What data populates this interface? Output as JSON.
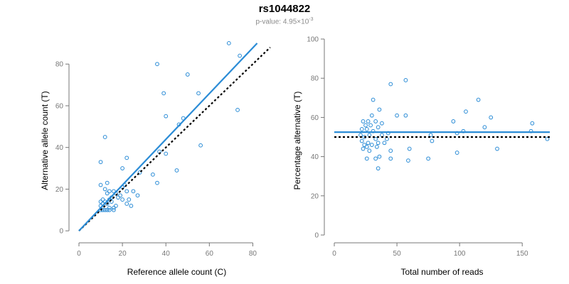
{
  "title": "rs1044822",
  "subtitle": {
    "prefix": "p-value: 4.95×10",
    "exponent": "-3"
  },
  "colors": {
    "points": "#2b8cd6",
    "fit_line": "#2b8cd6",
    "reference_line": "#000000",
    "axis": "#777777",
    "subtitle": "#8a8a8a"
  },
  "chart_data": [
    {
      "type": "scatter",
      "title": "",
      "xlabel": "Reference allele count (C)",
      "ylabel": "Alternative allele count (T)",
      "xlim": [
        0,
        90
      ],
      "ylim": [
        -2,
        92
      ],
      "x_ticks": [
        0,
        20,
        40,
        60,
        80
      ],
      "y_ticks": [
        0,
        20,
        40,
        60,
        80
      ],
      "grid": false,
      "fit_line": {
        "x": [
          0,
          82
        ],
        "y": [
          0,
          90
        ],
        "color": "#2b8cd6",
        "style": "solid"
      },
      "reference_line": {
        "x": [
          0,
          88
        ],
        "y": [
          0,
          88
        ],
        "color": "#000000",
        "style": "dotted"
      },
      "points": [
        {
          "x": 10,
          "y": 33
        },
        {
          "x": 12,
          "y": 45
        },
        {
          "x": 36,
          "y": 80
        },
        {
          "x": 39,
          "y": 66
        },
        {
          "x": 50,
          "y": 75
        },
        {
          "x": 69,
          "y": 90
        },
        {
          "x": 74,
          "y": 84
        },
        {
          "x": 73,
          "y": 58
        },
        {
          "x": 55,
          "y": 66
        },
        {
          "x": 40,
          "y": 55
        },
        {
          "x": 48,
          "y": 54
        },
        {
          "x": 46,
          "y": 51
        },
        {
          "x": 56,
          "y": 41
        },
        {
          "x": 40,
          "y": 37
        },
        {
          "x": 37,
          "y": 38
        },
        {
          "x": 36,
          "y": 23
        },
        {
          "x": 34,
          "y": 27
        },
        {
          "x": 45,
          "y": 29
        },
        {
          "x": 22,
          "y": 35
        },
        {
          "x": 20,
          "y": 30
        },
        {
          "x": 28,
          "y": 28
        },
        {
          "x": 10,
          "y": 22
        },
        {
          "x": 13,
          "y": 23
        },
        {
          "x": 21,
          "y": 22
        },
        {
          "x": 20,
          "y": 21
        },
        {
          "x": 12,
          "y": 20
        },
        {
          "x": 14,
          "y": 19
        },
        {
          "x": 16,
          "y": 19
        },
        {
          "x": 13,
          "y": 18
        },
        {
          "x": 17,
          "y": 18
        },
        {
          "x": 22,
          "y": 19
        },
        {
          "x": 25,
          "y": 19
        },
        {
          "x": 19,
          "y": 17
        },
        {
          "x": 27,
          "y": 17
        },
        {
          "x": 15,
          "y": 16
        },
        {
          "x": 18,
          "y": 16
        },
        {
          "x": 11,
          "y": 15
        },
        {
          "x": 14,
          "y": 15
        },
        {
          "x": 20,
          "y": 15
        },
        {
          "x": 23,
          "y": 15
        },
        {
          "x": 10,
          "y": 14
        },
        {
          "x": 12,
          "y": 14
        },
        {
          "x": 15,
          "y": 14
        },
        {
          "x": 22,
          "y": 13
        },
        {
          "x": 11,
          "y": 13
        },
        {
          "x": 13,
          "y": 13
        },
        {
          "x": 17,
          "y": 12
        },
        {
          "x": 24,
          "y": 12
        },
        {
          "x": 10,
          "y": 12
        },
        {
          "x": 14,
          "y": 11
        },
        {
          "x": 16,
          "y": 11
        },
        {
          "x": 11,
          "y": 10
        },
        {
          "x": 13,
          "y": 10
        },
        {
          "x": 16,
          "y": 10
        },
        {
          "x": 10,
          "y": 10
        },
        {
          "x": 12,
          "y": 10
        },
        {
          "x": 14,
          "y": 10
        }
      ]
    },
    {
      "type": "scatter",
      "title": "",
      "xlabel": "Total number of reads",
      "ylabel": "Percentage alternative (T)",
      "xlim": [
        0,
        172
      ],
      "ylim": [
        0,
        100
      ],
      "x_ticks": [
        0,
        50,
        100,
        150
      ],
      "y_ticks": [
        0,
        20,
        40,
        60,
        80,
        100
      ],
      "grid": false,
      "fit_line": {
        "y": 52.5,
        "color": "#2b8cd6",
        "style": "solid"
      },
      "reference_line": {
        "y": 50,
        "color": "#000000",
        "style": "dotted"
      },
      "points": [
        {
          "x": 45,
          "y": 77
        },
        {
          "x": 57,
          "y": 79
        },
        {
          "x": 31,
          "y": 69
        },
        {
          "x": 115,
          "y": 69
        },
        {
          "x": 36,
          "y": 64
        },
        {
          "x": 50,
          "y": 61
        },
        {
          "x": 57,
          "y": 61
        },
        {
          "x": 30,
          "y": 61
        },
        {
          "x": 105,
          "y": 63
        },
        {
          "x": 125,
          "y": 60
        },
        {
          "x": 23,
          "y": 58
        },
        {
          "x": 27,
          "y": 58
        },
        {
          "x": 33,
          "y": 58
        },
        {
          "x": 38,
          "y": 57
        },
        {
          "x": 25,
          "y": 56
        },
        {
          "x": 29,
          "y": 56
        },
        {
          "x": 35,
          "y": 55
        },
        {
          "x": 22,
          "y": 54
        },
        {
          "x": 26,
          "y": 54
        },
        {
          "x": 31,
          "y": 53
        },
        {
          "x": 95,
          "y": 58
        },
        {
          "x": 120,
          "y": 55
        },
        {
          "x": 158,
          "y": 57
        },
        {
          "x": 157,
          "y": 53
        },
        {
          "x": 103,
          "y": 53
        },
        {
          "x": 98,
          "y": 52
        },
        {
          "x": 43,
          "y": 52
        },
        {
          "x": 21,
          "y": 51
        },
        {
          "x": 28,
          "y": 51
        },
        {
          "x": 38,
          "y": 51
        },
        {
          "x": 24,
          "y": 50
        },
        {
          "x": 33,
          "y": 49
        },
        {
          "x": 42,
          "y": 49
        },
        {
          "x": 77,
          "y": 51
        },
        {
          "x": 22,
          "y": 48
        },
        {
          "x": 27,
          "y": 47
        },
        {
          "x": 35,
          "y": 47
        },
        {
          "x": 40,
          "y": 47
        },
        {
          "x": 78,
          "y": 48
        },
        {
          "x": 24,
          "y": 46
        },
        {
          "x": 30,
          "y": 46
        },
        {
          "x": 26,
          "y": 45
        },
        {
          "x": 34,
          "y": 45
        },
        {
          "x": 23,
          "y": 44
        },
        {
          "x": 28,
          "y": 43
        },
        {
          "x": 45,
          "y": 43
        },
        {
          "x": 60,
          "y": 44
        },
        {
          "x": 130,
          "y": 44
        },
        {
          "x": 98,
          "y": 42
        },
        {
          "x": 36,
          "y": 40
        },
        {
          "x": 26,
          "y": 39
        },
        {
          "x": 33,
          "y": 39
        },
        {
          "x": 45,
          "y": 39
        },
        {
          "x": 59,
          "y": 38
        },
        {
          "x": 75,
          "y": 39
        },
        {
          "x": 35,
          "y": 34
        },
        {
          "x": 170,
          "y": 49
        }
      ]
    }
  ]
}
